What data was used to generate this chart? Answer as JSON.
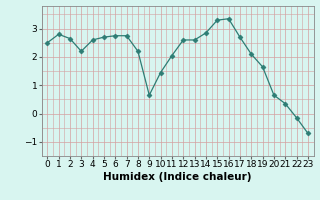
{
  "x": [
    0,
    1,
    2,
    3,
    4,
    5,
    6,
    7,
    8,
    9,
    10,
    11,
    12,
    13,
    14,
    15,
    16,
    17,
    18,
    19,
    20,
    21,
    22,
    23
  ],
  "y": [
    2.5,
    2.8,
    2.65,
    2.2,
    2.6,
    2.7,
    2.75,
    2.75,
    2.2,
    0.65,
    1.45,
    2.05,
    2.6,
    2.6,
    2.85,
    3.3,
    3.35,
    2.7,
    2.1,
    1.65,
    0.65,
    0.35,
    -0.15,
    -0.7
  ],
  "line_color": "#2d7d74",
  "marker": "D",
  "marker_size": 2.5,
  "bg_color": "#d8f5f0",
  "grid_color": "#c8e8e0",
  "xlabel": "Humidex (Indice chaleur)",
  "ylim": [
    -1.5,
    3.8
  ],
  "xlim": [
    -0.5,
    23.5
  ],
  "yticks": [
    -1,
    0,
    1,
    2,
    3
  ],
  "xticks": [
    0,
    1,
    2,
    3,
    4,
    5,
    6,
    7,
    8,
    9,
    10,
    11,
    12,
    13,
    14,
    15,
    16,
    17,
    18,
    19,
    20,
    21,
    22,
    23
  ],
  "xlabel_fontsize": 7.5,
  "tick_fontsize": 6.5
}
